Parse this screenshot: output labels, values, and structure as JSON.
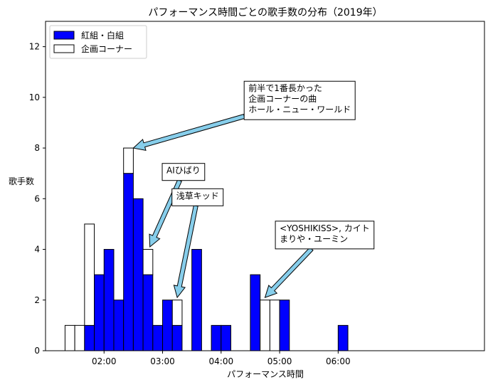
{
  "chart_data": {
    "type": "bar",
    "title": "パフォーマンス時間ごとの歌手数の分布（2019年）",
    "xlabel": "パフォーマンス時間",
    "ylabel": "歌手数",
    "ylim": [
      0,
      13
    ],
    "yticks": [
      0,
      2,
      4,
      6,
      8,
      10,
      12
    ],
    "xlim_seconds": [
      60,
      510
    ],
    "bin_seconds": 10,
    "xticks": [
      {
        "value_seconds": 120,
        "label": "02:00"
      },
      {
        "value_seconds": 180,
        "label": "03:00"
      },
      {
        "value_seconds": 240,
        "label": "04:00"
      },
      {
        "value_seconds": 300,
        "label": "05:00"
      },
      {
        "value_seconds": 360,
        "label": "06:00"
      }
    ],
    "bin_starts_seconds": [
      80,
      90,
      100,
      110,
      120,
      130,
      140,
      150,
      160,
      170,
      180,
      190,
      200,
      210,
      220,
      230,
      240,
      250,
      260,
      270,
      280,
      290,
      300,
      360
    ],
    "stacked": true,
    "series": [
      {
        "name": "紅組・白組",
        "color": "#0000ff",
        "values": [
          0,
          0,
          1,
          3,
          4,
          2,
          7,
          6,
          3,
          1,
          2,
          1,
          0,
          4,
          0,
          1,
          1,
          0,
          0,
          3,
          0,
          0,
          2,
          1
        ]
      },
      {
        "name": "企画コーナー",
        "color": "#ffffff",
        "values": [
          1,
          1,
          4,
          0,
          0,
          0,
          1,
          0,
          1,
          0,
          0,
          1,
          0,
          0,
          0,
          0,
          0,
          0,
          0,
          0,
          2,
          2,
          0,
          0
        ]
      }
    ],
    "legend_position": "top-left",
    "grid": false,
    "annotations": [
      {
        "lines": [
          "前半で1番長かった",
          "企画コーナーの曲",
          "ホール・ニュー・ワールド"
        ],
        "target_x_seconds": 150,
        "target_y": 8,
        "text_x_seconds": 268,
        "text_y": 9.4
      },
      {
        "lines": [
          "AIひばり"
        ],
        "target_x_seconds": 167,
        "target_y": 4.1,
        "text_x_seconds": 184,
        "text_y": 7.0
      },
      {
        "lines": [
          "浅草キッド"
        ],
        "target_x_seconds": 195,
        "target_y": 2.1,
        "text_x_seconds": 194,
        "text_y": 6.0
      },
      {
        "lines": [
          "<YOSHIKISS>, カイト",
          "まりや・ユーミン"
        ],
        "target_x_seconds": 285,
        "target_y": 2.1,
        "text_x_seconds": 300,
        "text_y": 4.3
      }
    ],
    "colors": {
      "arrow_fill": "#87ceeb",
      "edge": "#000000"
    }
  }
}
